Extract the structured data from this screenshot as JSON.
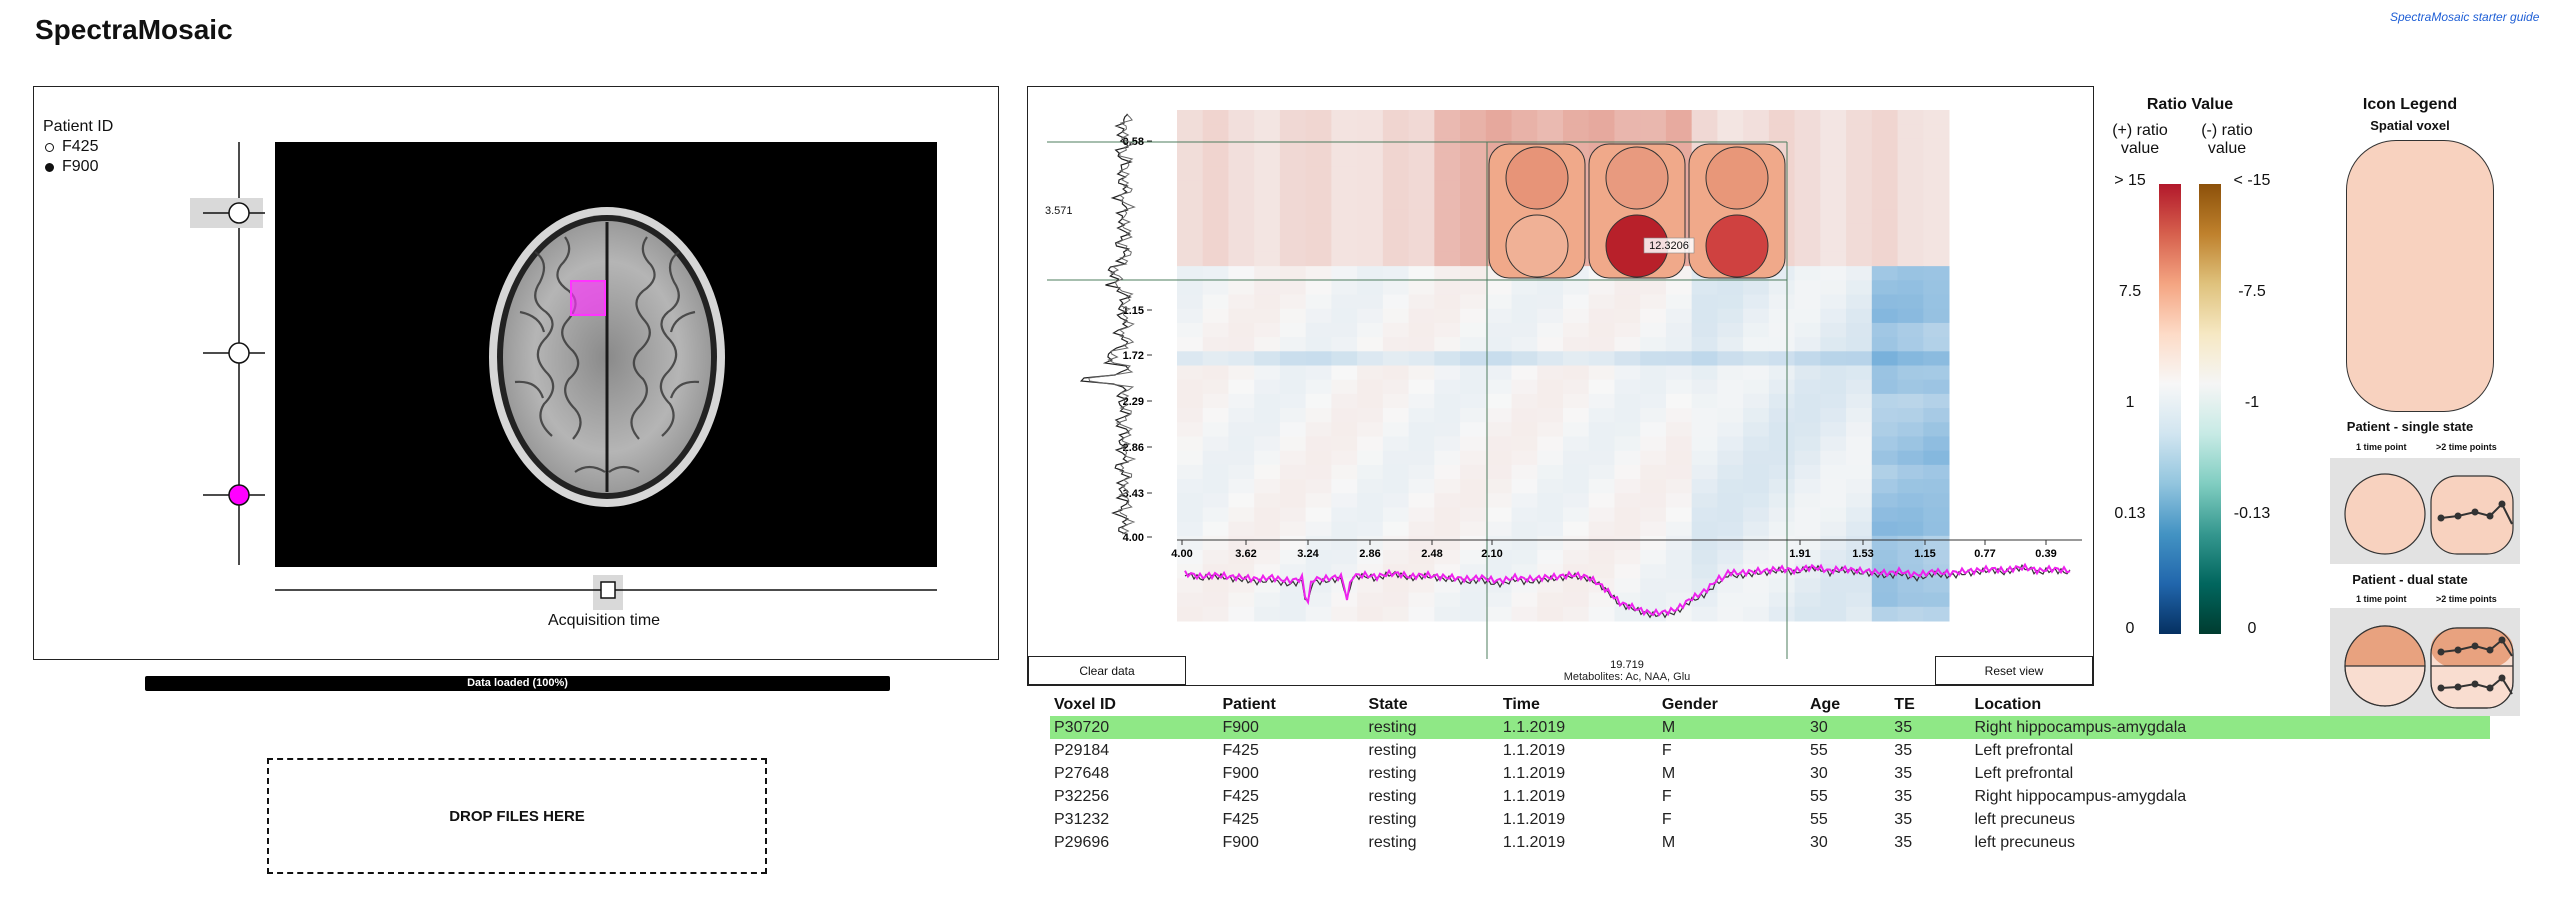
{
  "app": {
    "title": "SpectraMosaic",
    "guide_link": "SpectraMosaic starter guide"
  },
  "patient_selector": {
    "title": "Patient ID",
    "patients": [
      {
        "id": "F425",
        "selected": false
      },
      {
        "id": "F900",
        "selected": true
      }
    ]
  },
  "mri": {
    "acquisition_label": "Acquisition time",
    "voxel_color": "#ff33ff"
  },
  "loading": {
    "label": "Data loaded (100%)",
    "progress": 1.0
  },
  "drop_zone": {
    "label": "DROP FILES HERE"
  },
  "spectra": {
    "y_ticks": [
      "0.58",
      "1.15",
      "1.72",
      "2.29",
      "2.86",
      "3.43",
      "4.00"
    ],
    "x_ticks": [
      "4.00",
      "3.62",
      "3.24",
      "2.86",
      "2.48",
      "2.10",
      "1.91",
      "1.53",
      "1.15",
      "0.77",
      "0.39"
    ],
    "left_marker": "3.571",
    "bottom_marker": "19.719",
    "cell_tooltip": "12.3206",
    "metabolites_label": "Metabolites: Ac, NAA, Glu",
    "clear_button": "Clear data",
    "reset_button": "Reset view"
  },
  "ratio_legend": {
    "title": "Ratio Value",
    "pos_header": "(+) ratio value",
    "neg_header": "(-) ratio value",
    "pos_labels": [
      "> 15",
      "7.5",
      "1",
      "0.13",
      "0"
    ],
    "neg_labels": [
      "< -15",
      "-7.5",
      "-1",
      "-0.13",
      "0"
    ],
    "pos_colors": [
      "#67001f",
      "#b2182b",
      "#d6604d",
      "#f4a582",
      "#fddbc7",
      "#f7f7f7",
      "#d1e5f0",
      "#92c5de",
      "#4393c3",
      "#2166ac",
      "#053061"
    ],
    "neg_colors": [
      "#543005",
      "#8c510a",
      "#bf812d",
      "#dfc27d",
      "#f6e8c3",
      "#f5f5f5",
      "#c7eae5",
      "#80cdc1",
      "#35978f",
      "#01665e",
      "#003c30"
    ]
  },
  "icon_legend": {
    "title": "Icon Legend",
    "spatial_voxel": "Spatial voxel",
    "single_state": "Patient - single state",
    "dual_state": "Patient - dual state",
    "one_tp": "1 time point",
    "multi_tp": ">2 time points"
  },
  "table": {
    "columns": [
      "Voxel ID",
      "Patient",
      "State",
      "Time",
      "Gender",
      "Age",
      "TE",
      "Location"
    ],
    "rows": [
      [
        "P30720",
        "F900",
        "resting",
        "1.1.2019",
        "M",
        "30",
        "35",
        "Right hippocampus-amygdala"
      ],
      [
        "P29184",
        "F425",
        "resting",
        "1.1.2019",
        "F",
        "55",
        "35",
        "Left prefrontal"
      ],
      [
        "P27648",
        "F900",
        "resting",
        "1.1.2019",
        "M",
        "30",
        "35",
        "Left prefrontal"
      ],
      [
        "P32256",
        "F425",
        "resting",
        "1.1.2019",
        "F",
        "55",
        "35",
        "Right hippocampus-amygdala"
      ],
      [
        "P31232",
        "F425",
        "resting",
        "1.1.2019",
        "F",
        "55",
        "35",
        "left precuneus"
      ],
      [
        "P29696",
        "F900",
        "resting",
        "1.1.2019",
        "M",
        "30",
        "35",
        "left precuneus"
      ]
    ],
    "selected_row": 0,
    "selected_color": "#8fe886"
  }
}
